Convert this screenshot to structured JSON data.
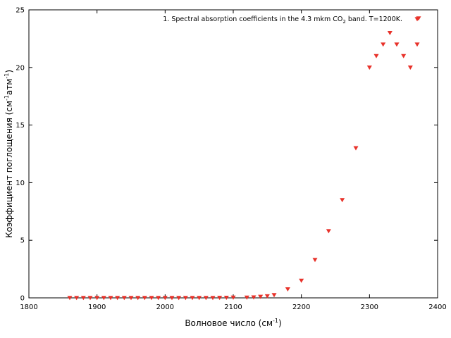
{
  "chart_data": {
    "type": "scatter",
    "xlabel": {
      "text": "Волновое число (см",
      "sup": "-1",
      "after": ")"
    },
    "ylabel": {
      "text": "Коэффициент поглощения (см",
      "sup1": "-1",
      "mid": "атм",
      "sup2": "-1",
      "after": ")"
    },
    "xlim": [
      1800,
      2400
    ],
    "ylim": [
      0,
      25
    ],
    "xticks": [
      1800,
      1900,
      2000,
      2100,
      2200,
      2300,
      2400
    ],
    "yticks": [
      0,
      5,
      10,
      15,
      20,
      25
    ],
    "grid": false,
    "legend_position": "top-right",
    "series": [
      {
        "name": {
          "prefix": "1. Spectral absorption coefficients in the 4.3 mkm CO",
          "sub": "2",
          "suffix": " band. T=1200K."
        },
        "color": "#e8322a",
        "marker": "triangle-down",
        "x": [
          1860,
          1870,
          1880,
          1890,
          1900,
          1910,
          1920,
          1930,
          1940,
          1950,
          1960,
          1970,
          1980,
          1990,
          2000,
          2010,
          2020,
          2030,
          2040,
          2050,
          2060,
          2070,
          2080,
          2090,
          2100,
          2120,
          2130,
          2140,
          2150,
          2160,
          2180,
          2200,
          2220,
          2240,
          2260,
          2280,
          2300,
          2310,
          2320,
          2330,
          2340,
          2350,
          2360,
          2370
        ],
        "y": [
          0,
          0,
          0,
          0,
          0,
          0,
          0,
          0,
          0,
          0,
          0,
          0,
          0,
          0,
          0,
          0,
          0,
          0,
          0,
          0,
          0,
          0,
          0.01,
          0.02,
          0.03,
          0.03,
          0.05,
          0.1,
          0.15,
          0.25,
          0.75,
          1.5,
          3.3,
          5.8,
          8.5,
          13.0,
          20.0,
          21.0,
          22.0,
          23.0,
          22.0,
          21.0,
          20.0,
          22.0
        ]
      }
    ],
    "extra_points": [
      {
        "x": 2370,
        "y": 24.2
      }
    ]
  }
}
